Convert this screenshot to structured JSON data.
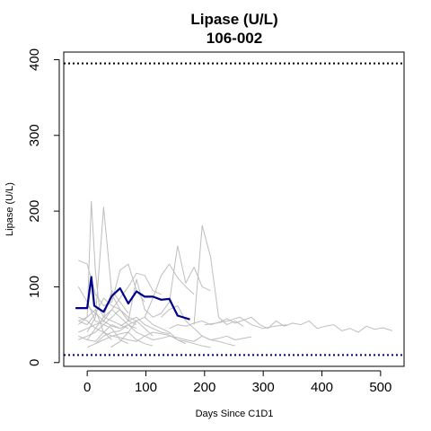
{
  "chart_data": {
    "type": "line",
    "title": "Lipase (U/L)",
    "subtitle": "106-002",
    "xlabel": "Days Since C1D1",
    "ylabel": "Lipase (U/L)",
    "xlim": [
      -40,
      540
    ],
    "ylim": [
      -5,
      410
    ],
    "xticks": [
      0,
      100,
      200,
      300,
      400,
      500
    ],
    "yticks": [
      0,
      100,
      200,
      300,
      400
    ],
    "grid": false,
    "legend": "none",
    "reference_lines": [
      {
        "y": 395,
        "style": "dotted",
        "color": "#000000"
      },
      {
        "y": 10,
        "style": "dotted",
        "color": "#00008b"
      }
    ],
    "highlight_color": "#00008b",
    "background_color": "#bebebe",
    "series": [
      {
        "role": "highlight",
        "x": [
          -20,
          -5,
          0,
          7,
          12,
          18,
          28,
          42,
          56,
          70,
          84,
          98,
          112,
          126,
          140,
          154,
          175
        ],
        "y": [
          72,
          72,
          72,
          113,
          75,
          72,
          67,
          88,
          98,
          78,
          94,
          87,
          87,
          83,
          84,
          62,
          57
        ]
      },
      {
        "role": "background",
        "x": [
          -15,
          0,
          7,
          14,
          21,
          28,
          42,
          56,
          70
        ],
        "y": [
          55,
          60,
          213,
          120,
          70,
          60,
          55,
          50,
          45
        ]
      },
      {
        "role": "background",
        "x": [
          0,
          14,
          28,
          42,
          56,
          70,
          84
        ],
        "y": [
          40,
          60,
          205,
          90,
          70,
          55,
          50
        ]
      },
      {
        "role": "background",
        "x": [
          56,
          70,
          84,
          98,
          112,
          126,
          140,
          154,
          168,
          182,
          196,
          210
        ],
        "y": [
          48,
          55,
          110,
          70,
          60,
          65,
          80,
          154,
          105,
          126,
          100,
          95
        ]
      },
      {
        "role": "background",
        "x": [
          182,
          196,
          210,
          224,
          238,
          252,
          266
        ],
        "y": [
          50,
          181,
          140,
          60,
          50,
          55,
          48
        ]
      },
      {
        "role": "background",
        "x": [
          140,
          154,
          168,
          182,
          196,
          210,
          224,
          238,
          252,
          266,
          280,
          294,
          308,
          322,
          336,
          350,
          364,
          378,
          392,
          406,
          420,
          434,
          448,
          462,
          476,
          490,
          504,
          520
        ],
        "y": [
          45,
          50,
          48,
          52,
          55,
          50,
          53,
          58,
          52,
          56,
          60,
          50,
          45,
          55,
          48,
          52,
          50,
          55,
          45,
          48,
          50,
          42,
          45,
          40,
          48,
          44,
          46,
          42
        ]
      },
      {
        "role": "background",
        "x": [
          200,
          220,
          240,
          260,
          280,
          300,
          320,
          340
        ],
        "y": [
          50,
          52,
          55,
          60,
          50,
          45,
          48,
          50
        ]
      },
      {
        "role": "background",
        "x": [
          -15,
          0,
          14,
          28,
          42,
          56,
          70,
          84,
          98
        ],
        "y": [
          135,
          130,
          90,
          75,
          80,
          122,
          130,
          95,
          80
        ]
      },
      {
        "role": "background",
        "x": [
          28,
          42,
          56,
          70,
          84,
          98,
          112,
          126
        ],
        "y": [
          60,
          70,
          85,
          100,
          118,
          115,
          95,
          90
        ]
      },
      {
        "role": "background",
        "x": [
          98,
          112,
          126,
          140,
          154,
          168,
          182
        ],
        "y": [
          60,
          85,
          115,
          130,
          112,
          100,
          90
        ]
      },
      {
        "role": "background",
        "x": [
          -15,
          0,
          14,
          28,
          42,
          56,
          70,
          84,
          98,
          112,
          126,
          140
        ],
        "y": [
          100,
          80,
          55,
          50,
          60,
          70,
          55,
          60,
          50,
          45,
          40,
          38
        ]
      },
      {
        "role": "background",
        "x": [
          -15,
          0,
          14,
          28,
          42,
          56,
          70
        ],
        "y": [
          30,
          35,
          40,
          50,
          45,
          30,
          25
        ]
      },
      {
        "role": "background",
        "x": [
          0,
          14,
          28,
          42,
          56,
          70,
          84,
          98,
          112,
          126,
          140,
          154,
          168
        ],
        "y": [
          20,
          25,
          35,
          40,
          42,
          50,
          55,
          60,
          50,
          45,
          40,
          30,
          25
        ]
      },
      {
        "role": "background",
        "x": [
          -15,
          0,
          14,
          28,
          42,
          56,
          70,
          84,
          98,
          112,
          126,
          140,
          154,
          168,
          182,
          196,
          210,
          224,
          238,
          252,
          266,
          280
        ],
        "y": [
          40,
          45,
          50,
          55,
          48,
          45,
          50,
          40,
          35,
          30,
          32,
          35,
          33,
          30,
          28,
          35,
          30,
          32,
          35,
          30,
          32,
          34
        ]
      },
      {
        "role": "background",
        "x": [
          -15,
          0,
          14,
          28,
          42,
          56
        ],
        "y": [
          60,
          55,
          45,
          40,
          50,
          45
        ]
      },
      {
        "role": "background",
        "x": [
          0,
          14,
          28,
          42,
          56,
          70,
          84
        ],
        "y": [
          75,
          65,
          55,
          70,
          60,
          50,
          45
        ]
      },
      {
        "role": "background",
        "x": [
          -15,
          0,
          14,
          28,
          42
        ],
        "y": [
          50,
          60,
          70,
          40,
          30
        ]
      },
      {
        "role": "background",
        "x": [
          14,
          28,
          42,
          56,
          70,
          84,
          98,
          112
        ],
        "y": [
          25,
          30,
          35,
          38,
          40,
          30,
          25,
          22
        ]
      },
      {
        "role": "background",
        "x": [
          -15,
          0,
          14,
          28,
          42,
          56,
          70,
          84,
          98,
          112,
          126,
          140,
          154,
          168,
          182,
          196,
          210
        ],
        "y": [
          35,
          30,
          28,
          40,
          35,
          33,
          30,
          28,
          35,
          40,
          38,
          36,
          30,
          28,
          25,
          22,
          20
        ]
      },
      {
        "role": "background",
        "x": [
          126,
          140,
          154,
          168,
          182,
          196,
          210,
          224,
          238,
          252
        ],
        "y": [
          60,
          70,
          75,
          55,
          45,
          35,
          30,
          28,
          25,
          22
        ]
      },
      {
        "role": "background",
        "x": [
          -15,
          0,
          14,
          28,
          42,
          56,
          70,
          84
        ],
        "y": [
          55,
          50,
          65,
          85,
          75,
          70,
          60,
          55
        ]
      },
      {
        "role": "background",
        "x": [
          0,
          14,
          28,
          42,
          56,
          70
        ],
        "y": [
          30,
          45,
          60,
          95,
          80,
          65
        ]
      },
      {
        "role": "background",
        "x": [
          40,
          56,
          70,
          84,
          98,
          112
        ],
        "y": [
          20,
          28,
          40,
          55,
          45,
          35
        ]
      }
    ]
  }
}
